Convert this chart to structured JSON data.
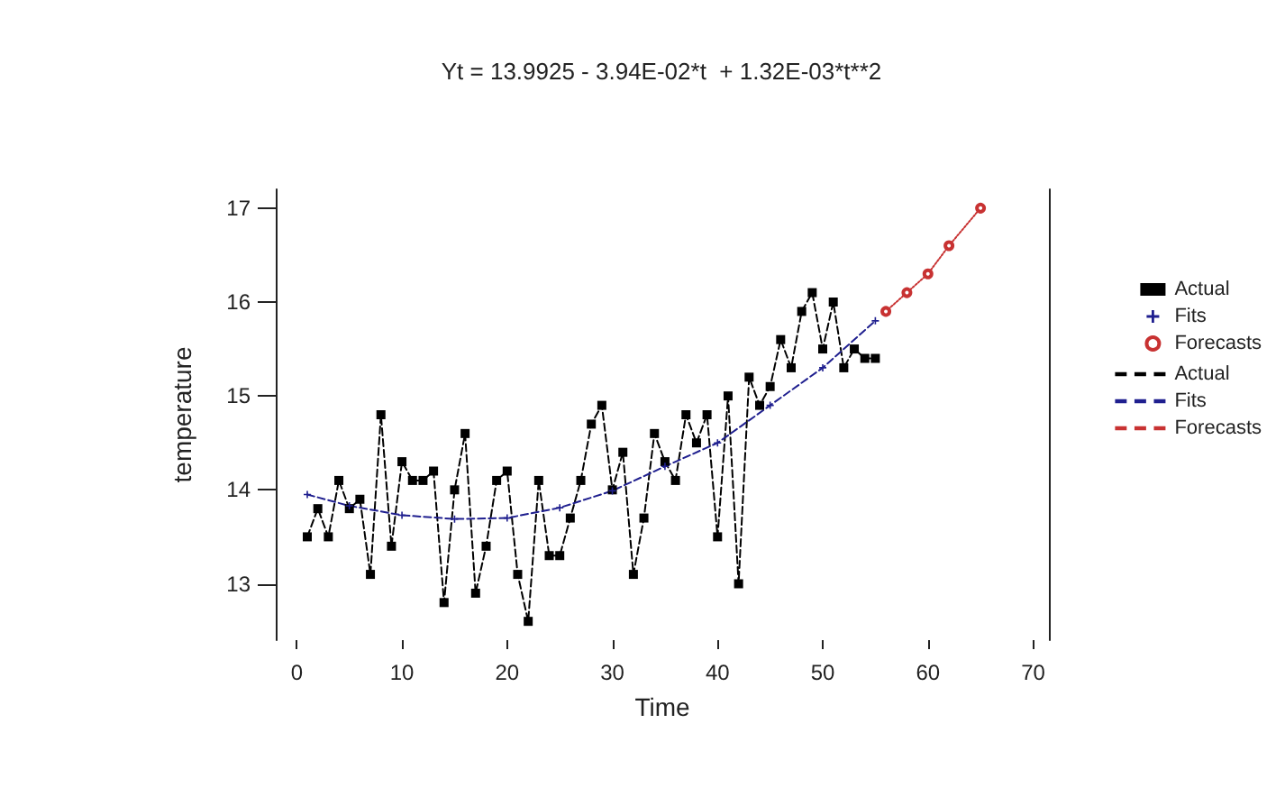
{
  "chart_data": {
    "type": "line",
    "title": "Yt = 13.9925 - 3.94E-02*t  + 1.32E-03*t**2",
    "xlabel": "Time",
    "ylabel": "temperature",
    "xlim": [
      -2,
      71.5
    ],
    "xticks": [
      0,
      10,
      20,
      30,
      40,
      50,
      60,
      70
    ],
    "ylim": [
      12.4,
      17.2
    ],
    "yticks": [
      13,
      14,
      15,
      16,
      17
    ],
    "grid": false,
    "legend": "right",
    "series": [
      {
        "name": "Actual",
        "color": "#000000",
        "marker": "square",
        "line_style": "dashed",
        "x": [
          1,
          2,
          3,
          4,
          5,
          6,
          7,
          8,
          9,
          10,
          11,
          12,
          13,
          14,
          15,
          16,
          17,
          18,
          19,
          20,
          21,
          22,
          23,
          24,
          25,
          26,
          27,
          28,
          29,
          30,
          31,
          32,
          33,
          34,
          35,
          36,
          37,
          38,
          39,
          40,
          41,
          42,
          43,
          44,
          45,
          46,
          47,
          48,
          49,
          50,
          51,
          52,
          53,
          54,
          55
        ],
        "values": [
          13.5,
          13.8,
          13.5,
          14.1,
          13.8,
          13.9,
          13.1,
          14.8,
          13.4,
          14.3,
          14.1,
          14.1,
          14.2,
          12.8,
          14.0,
          14.6,
          12.9,
          13.4,
          14.1,
          14.2,
          13.1,
          12.6,
          14.1,
          13.3,
          13.3,
          13.7,
          14.1,
          14.7,
          14.9,
          14.0,
          14.4,
          13.1,
          13.7,
          14.6,
          14.3,
          14.1,
          14.8,
          14.5,
          14.8,
          13.5,
          15.0,
          13.0,
          15.2,
          14.9,
          15.1,
          15.6,
          15.3,
          15.9,
          16.1,
          15.5,
          16.0,
          15.3,
          15.5,
          15.4,
          15.4
        ]
      },
      {
        "name": "Fits",
        "color": "#1f1f8f",
        "marker": "cross",
        "line_style": "dashed",
        "x": [
          1,
          5,
          10,
          15,
          20,
          25,
          30,
          35,
          40,
          45,
          50,
          55
        ],
        "values": [
          13.95,
          13.83,
          13.73,
          13.69,
          13.7,
          13.81,
          13.99,
          14.25,
          14.5,
          14.9,
          15.3,
          15.8
        ]
      },
      {
        "name": "Forecasts",
        "color": "#c83232",
        "marker": "circle",
        "line_style": "dotted",
        "x": [
          56,
          58,
          60,
          62,
          65
        ],
        "values": [
          15.9,
          16.1,
          16.3,
          16.6,
          17.0
        ]
      }
    ]
  }
}
